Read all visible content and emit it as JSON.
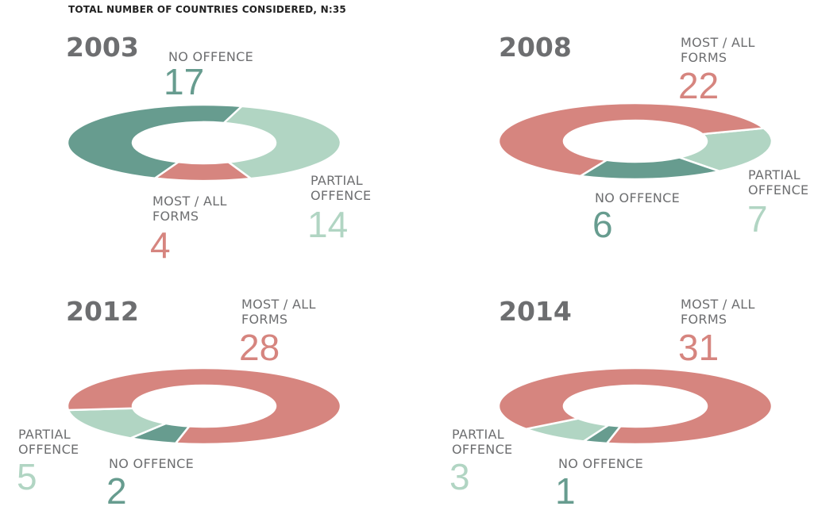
{
  "chart_data": {
    "type": "pie",
    "title": "TOTAL NUMBER OF COUNTRIES CONSIDERED, N:35",
    "categories": [
      "NO OFFENCE",
      "PARTIAL OFFENCE",
      "MOST / ALL FORMS"
    ],
    "colors": {
      "no": "#679c8f",
      "partial": "#b1d5c3",
      "most": "#d6857f"
    },
    "charts": [
      {
        "year": "2003",
        "no": 17,
        "partial": 14,
        "most": 4,
        "order": [
          "partial",
          "most",
          "no"
        ]
      },
      {
        "year": "2008",
        "no": 6,
        "partial": 7,
        "most": 22,
        "order": [
          "partial",
          "no",
          "most"
        ]
      },
      {
        "year": "2012",
        "no": 2,
        "partial": 5,
        "most": 28,
        "order": [
          "no",
          "partial",
          "most"
        ]
      },
      {
        "year": "2014",
        "no": 1,
        "partial": 3,
        "most": 31,
        "order": [
          "no",
          "partial",
          "most"
        ]
      }
    ],
    "labels": {
      "no": "NO OFFENCE",
      "partial_1": "PARTIAL",
      "partial_2": "OFFENCE",
      "most_1": "MOST / ALL",
      "most_2": "FORMS"
    }
  }
}
